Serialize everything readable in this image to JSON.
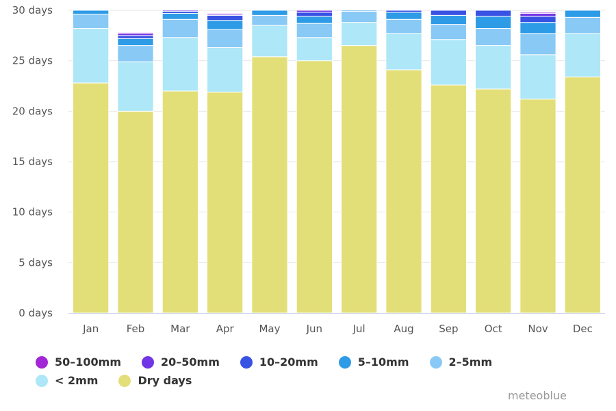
{
  "chart_data": {
    "type": "bar",
    "stacked": true,
    "categories": [
      "Jan",
      "Feb",
      "Mar",
      "Apr",
      "May",
      "Jun",
      "Jul",
      "Aug",
      "Sep",
      "Oct",
      "Nov",
      "Dec"
    ],
    "y_ticks": [
      "0 days",
      "5 days",
      "10 days",
      "15 days",
      "20 days",
      "25 days",
      "30 days"
    ],
    "ylim": [
      0,
      30
    ],
    "grid": true,
    "legend_position": "bottom-left",
    "series": [
      {
        "name": "Dry days",
        "color": "#e3df78",
        "values": [
          22.8,
          20.0,
          22.0,
          21.9,
          25.4,
          25.0,
          26.5,
          24.1,
          22.6,
          22.2,
          21.2,
          23.4
        ]
      },
      {
        "name": "< 2mm",
        "color": "#ade7f8",
        "values": [
          5.4,
          4.9,
          5.3,
          4.4,
          3.1,
          2.3,
          2.3,
          3.6,
          4.5,
          4.3,
          4.4,
          4.3
        ]
      },
      {
        "name": "2-5mm",
        "color": "#89c9f6",
        "values": [
          1.4,
          1.6,
          1.8,
          1.8,
          1.0,
          1.4,
          1.1,
          1.4,
          1.5,
          1.7,
          2.1,
          1.6
        ]
      },
      {
        "name": "5-10mm",
        "color": "#2e9be6",
        "values": [
          0.4,
          0.7,
          0.6,
          0.9,
          0.5,
          0.7,
          0.1,
          0.7,
          0.9,
          1.2,
          1.1,
          0.7
        ]
      },
      {
        "name": "10-20mm",
        "color": "#3852e4",
        "values": [
          0.0,
          0.3,
          0.2,
          0.5,
          0.0,
          0.4,
          0.0,
          0.2,
          0.5,
          0.6,
          0.6,
          0.0
        ]
      },
      {
        "name": "20-50mm",
        "color": "#7035e4",
        "values": [
          0.0,
          0.2,
          0.1,
          0.1,
          0.0,
          0.2,
          0.0,
          0.0,
          0.0,
          0.0,
          0.3,
          0.0
        ]
      },
      {
        "name": "50-100mm",
        "color": "#a227d6",
        "values": [
          0.0,
          0.1,
          0.0,
          0.1,
          0.0,
          0.0,
          0.0,
          0.0,
          0.0,
          0.0,
          0.1,
          0.0
        ]
      }
    ]
  },
  "legend": {
    "row1": [
      {
        "label": "50–100mm",
        "color": "#a227d6"
      },
      {
        "label": "20–50mm",
        "color": "#7035e4"
      },
      {
        "label": "10–20mm",
        "color": "#3852e4"
      },
      {
        "label": "5–10mm",
        "color": "#2e9be6"
      },
      {
        "label": "2–5mm",
        "color": "#89c9f6"
      }
    ],
    "row2": [
      {
        "label": "< 2mm",
        "color": "#ade7f8"
      },
      {
        "label": "Dry days",
        "color": "#e3df78"
      }
    ]
  },
  "credit": "meteoblue"
}
